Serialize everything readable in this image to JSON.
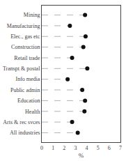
{
  "chart_data": {
    "type": "lollipop",
    "orientation": "horizontal",
    "categories": [
      "Mining",
      "Manufacturing",
      "Elec., gas etc",
      "Construction",
      "Retail trade",
      "Transpt & postal",
      "Info media",
      "Public admin",
      "Education",
      "Health",
      "Arts & rec svces",
      "All industries"
    ],
    "values": [
      3.85,
      2.5,
      3.9,
      3.7,
      2.7,
      4.05,
      2.3,
      3.6,
      3.85,
      3.8,
      2.7,
      3.2
    ],
    "xlabel": "%",
    "xlim": [
      0,
      7
    ],
    "xticks": [
      0,
      1,
      2,
      3,
      4,
      5,
      6,
      7
    ],
    "color": "#111111",
    "marker": "circle",
    "line_style": "dashed",
    "grid": false
  }
}
